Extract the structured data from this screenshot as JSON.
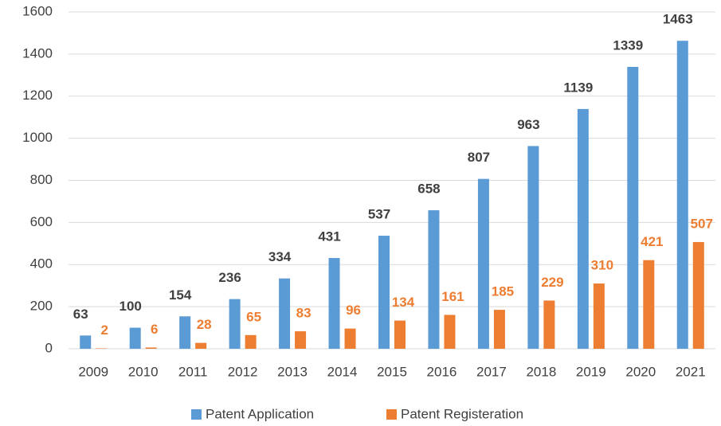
{
  "chart_data": {
    "type": "bar",
    "categories": [
      "2009",
      "2010",
      "2011",
      "2012",
      "2013",
      "2014",
      "2015",
      "2016",
      "2017",
      "2018",
      "2019",
      "2020",
      "2021"
    ],
    "series": [
      {
        "name": "Patent Application",
        "color": "#5b9bd5",
        "label_color": "#404040",
        "values": [
          63,
          100,
          154,
          236,
          334,
          431,
          537,
          658,
          807,
          963,
          1139,
          1339,
          1463
        ]
      },
      {
        "name": "Patent Registeration",
        "color": "#ed7d31",
        "label_color": "#ed7d31",
        "values": [
          2,
          6,
          28,
          65,
          83,
          96,
          134,
          161,
          185,
          229,
          310,
          421,
          507
        ]
      }
    ],
    "ylim": [
      0,
      1600
    ],
    "yticks": [
      0,
      200,
      400,
      600,
      800,
      1000,
      1200,
      1400,
      1600
    ],
    "grid": true,
    "legend": "bottom"
  }
}
